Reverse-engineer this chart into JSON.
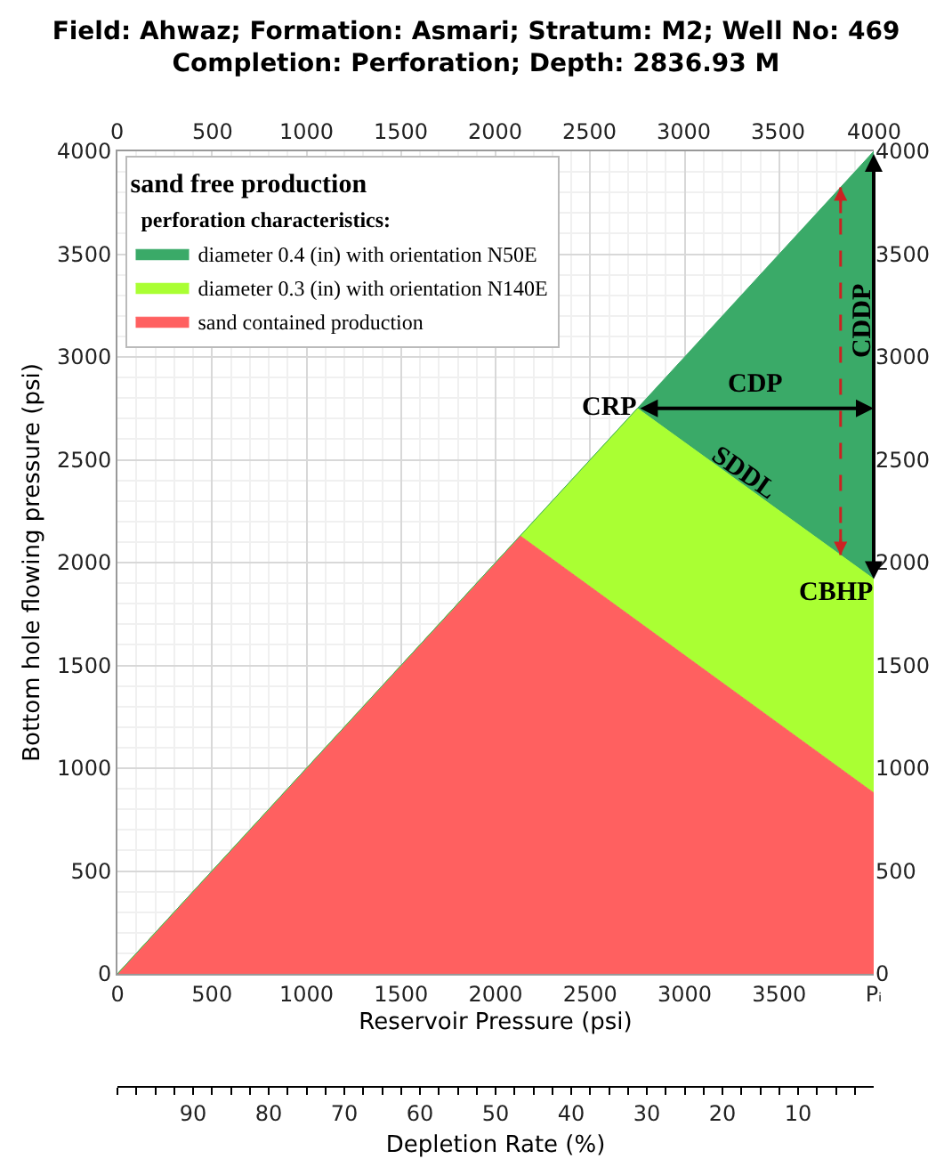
{
  "chart_data": {
    "type": "area",
    "title": "Field: Ahwaz; Formation: Asmari; Stratum: M2; Well No: 469\nCompletion: Perforation; Depth: 2836.93 M",
    "xlabel": "Reservoir Pressure (psi)",
    "ylabel": "Bottom hole flowing pressure (psi)",
    "x2label": "Depletion Rate (%)",
    "legend_title": "sand free production\nperforation characteristics:",
    "series": [
      {
        "name": "diameter 0.4 (in) with orientation N50E",
        "color": "#3aaa68",
        "x": [
          0,
          2750,
          4000
        ],
        "values": [
          0,
          2750,
          4000
        ]
      },
      {
        "name": "diameter 0.3 (in) with orientation N140E",
        "color": "#aaff33",
        "x": [
          0,
          2130,
          2750,
          4000
        ],
        "values": [
          0,
          2130,
          2750,
          1920
        ]
      },
      {
        "name": "sand contained production",
        "color": "#ff6060",
        "x": [
          0,
          2130,
          4000
        ],
        "values": [
          0,
          2130,
          880
        ]
      }
    ],
    "xlim": [
      0,
      4000
    ],
    "ylim": [
      0,
      4000
    ],
    "xticks": [
      0,
      500,
      1000,
      1500,
      2000,
      2500,
      3000,
      3500,
      {
        "value": 4000,
        "label": "Pᵢ"
      }
    ],
    "yticks": [
      0,
      500,
      1000,
      1500,
      2000,
      2500,
      3000,
      3500,
      4000
    ],
    "y2lim": [
      0,
      4000
    ],
    "y2ticks": [
      0,
      500,
      1000,
      1500,
      2000,
      2500,
      3000,
      3500,
      4000
    ],
    "x2lim": [
      100,
      0
    ],
    "x2ticks": [
      {
        "value": 100,
        "label": null
      },
      {
        "value": 97.5,
        "label": null
      },
      {
        "value": 95,
        "label": null
      },
      {
        "value": 92.5,
        "label": null
      },
      90,
      {
        "value": 87.5,
        "label": null
      },
      {
        "value": 85,
        "label": null
      },
      {
        "value": 82.5,
        "label": null
      },
      80,
      {
        "value": 77.5,
        "label": null
      },
      {
        "value": 75,
        "label": null
      },
      {
        "value": 72.5,
        "label": null
      },
      70,
      {
        "value": 67.5,
        "label": null
      },
      {
        "value": 65,
        "label": null
      },
      {
        "value": 62.5,
        "label": null
      },
      60,
      {
        "value": 57.5,
        "label": null
      },
      {
        "value": 55,
        "label": null
      },
      {
        "value": 52.5,
        "label": null
      },
      50,
      {
        "value": 47.5,
        "label": null
      },
      {
        "value": 45,
        "label": null
      },
      {
        "value": 42.5,
        "label": null
      },
      40,
      {
        "value": 37.5,
        "label": null
      },
      {
        "value": 35,
        "label": null
      },
      {
        "value": 32.5,
        "label": null
      },
      30,
      {
        "value": 27.5,
        "label": null
      },
      {
        "value": 25,
        "label": null
      },
      {
        "value": 22.5,
        "label": null
      },
      20,
      {
        "value": 17.5,
        "label": null
      },
      {
        "value": 15,
        "label": null
      },
      {
        "value": 12.5,
        "label": null
      },
      10,
      {
        "value": 7.5,
        "label": null
      },
      {
        "value": 5,
        "label": null
      },
      {
        "value": 2.5,
        "label": null
      }
    ],
    "annotations": [
      {
        "text": "CRP",
        "x": 2750,
        "y": 2750
      },
      "CDP",
      "CDDP",
      "SDDL",
      {
        "text": "CBHP",
        "x": 4000,
        "y": 1920
      },
      "0",
      "500",
      "1000",
      "1500",
      "2000",
      "2500",
      "3000",
      "3500",
      "4000"
    ],
    "grid": true,
    "legend": "top left",
    "marker": "none",
    "line_style": "solid"
  }
}
